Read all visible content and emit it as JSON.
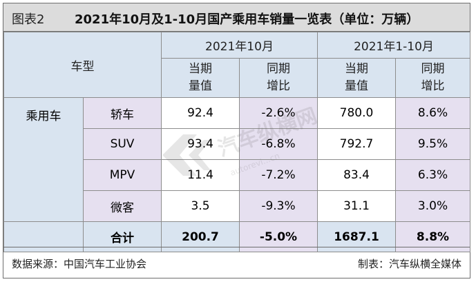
{
  "title": {
    "label": "图表2",
    "text": "2021年10月及1-10月国产乘用车销量一览表（单位：万辆）"
  },
  "table": {
    "header": {
      "type_col": "车型",
      "period1": "2021年10月",
      "period2": "2021年1-10月",
      "sub": [
        "当期\n量值",
        "同期\n增比",
        "当期\n量值",
        "同期\n增比"
      ]
    },
    "category": "乘用车",
    "rows": [
      {
        "type": "轿车",
        "cur1": "92.4",
        "yoy1": "-2.6%",
        "cur2": "780.0",
        "yoy2": "8.6%"
      },
      {
        "type": "SUV",
        "cur1": "93.4",
        "yoy1": "-6.8%",
        "cur2": "792.7",
        "yoy2": "9.5%"
      },
      {
        "type": "MPV",
        "cur1": "11.4",
        "yoy1": "-7.2%",
        "cur2": "83.4",
        "yoy2": "6.3%"
      },
      {
        "type": "微客",
        "cur1": "3.5",
        "yoy1": "-9.3%",
        "cur2": "31.1",
        "yoy2": "3.0%"
      }
    ],
    "total": {
      "label": "合计",
      "cur1": "200.7",
      "yoy1": "-5.0%",
      "cur2": "1687.1",
      "yoy2": "8.8%"
    }
  },
  "footer": {
    "source": "数据来源：中国汽车工业协会",
    "maker": "制表：汽车纵横全媒体"
  },
  "watermark": {
    "text": "汽车纵横网",
    "url": "autorevi...cn"
  },
  "colors": {
    "header_blue": "#d9e4f0",
    "purple": "#e6e0f0",
    "title_gray": "#dcdcdc"
  }
}
